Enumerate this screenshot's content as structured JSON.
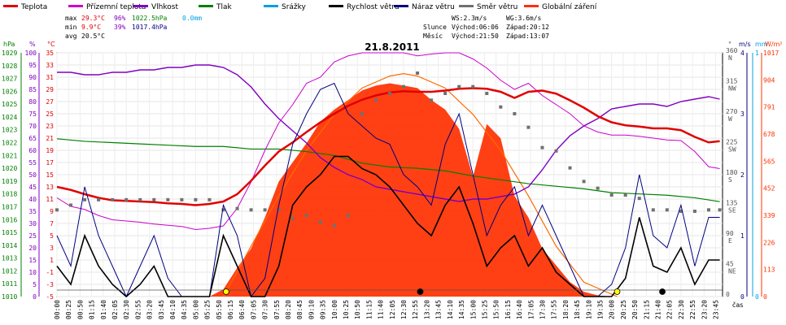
{
  "chart_data": {
    "type": "line",
    "title": "21.8.2011",
    "legend": [
      {
        "name": "Teplota",
        "color": "#e00000"
      },
      {
        "name": "Přízemní teplota",
        "color": "#cc00cc"
      },
      {
        "name": "Vlhkost",
        "color": "#8000c0"
      },
      {
        "name": "Tlak",
        "color": "#008000"
      },
      {
        "name": "Srážky",
        "color": "#00a0e0"
      },
      {
        "name": "Rychlost větru",
        "color": "#000000"
      },
      {
        "name": "Náraz větru",
        "color": "#000080"
      },
      {
        "name": "Směr větru",
        "color": "#707070"
      },
      {
        "name": "Globální záření",
        "color": "#ff3000"
      }
    ],
    "stats": {
      "max_label": "max",
      "max_temp": "29.3°C",
      "max_hum": "96%",
      "max_press": "1022.5hPa",
      "rain": "0.0mm",
      "min_label": "min",
      "min_temp": "9.9°C",
      "min_hum": "39%",
      "min_press": "1017.4hPa",
      "avg_label": "avg",
      "avg_temp": "20.5°C"
    },
    "info": {
      "ws": "WS:2.3m/s",
      "wg": "WG:3.6m/s",
      "sun_label": "Slunce",
      "sun_rise": "Východ:06:06",
      "sun_set": "Západ:20:12",
      "moon_label": "Měsíc",
      "moon_rise": "Východ:21:50",
      "moon_set": "Západ:13:07"
    },
    "axes": {
      "hpa_unit": "hPa",
      "pct_unit": "%",
      "temp_unit": "°C",
      "deg_unit": "°",
      "wind_unit": "m/s",
      "rain_unit": "mm",
      "rad_unit": "W/m²",
      "x_label": "čas",
      "hpa_ticks": [
        "1029",
        "1028",
        "1027",
        "1026",
        "1025",
        "1024",
        "1023",
        "1022",
        "1021",
        "1020",
        "1019",
        "1018",
        "1017",
        "1016",
        "1015",
        "1014",
        "1013",
        "1012",
        "1011",
        "1010"
      ],
      "pct_ticks": [
        "100",
        "95",
        "90",
        "85",
        "80",
        "75",
        "70",
        "65",
        "60",
        "55",
        "50",
        "45",
        "40",
        "35",
        "30",
        "25",
        "20",
        "15",
        "10",
        "5",
        "0"
      ],
      "temp_ticks": [
        "35",
        "33",
        "31",
        "29",
        "27",
        "25",
        "23",
        "21",
        "19",
        "17",
        "15",
        "13",
        "11",
        "9",
        "7",
        "5",
        "3",
        "1",
        "-1",
        "-3",
        "-5"
      ],
      "dir_ticks": [
        {
          "deg": "360",
          "dir": "N"
        },
        {
          "deg": "315",
          "dir": "NW"
        },
        {
          "deg": "270",
          "dir": "W"
        },
        {
          "deg": "225",
          "dir": "SW"
        },
        {
          "deg": "180",
          "dir": "S"
        },
        {
          "deg": "135",
          "dir": "SE"
        },
        {
          "deg": "90",
          "dir": "E"
        },
        {
          "deg": "45",
          "dir": "NE"
        },
        {
          "deg": "0",
          "dir": ""
        }
      ],
      "wind_ticks": [
        "4",
        "3",
        "2",
        "1",
        "0"
      ],
      "rain_ticks": [
        "1",
        "0"
      ],
      "rad_ticks": [
        "1017",
        "904",
        "791",
        "678",
        "565",
        "452",
        "339",
        "226",
        "113",
        "0"
      ],
      "hpa_range": [
        1010,
        1029
      ],
      "temp_range": [
        -5,
        35
      ],
      "pct_range": [
        0,
        100
      ],
      "dir_range": [
        0,
        360
      ],
      "wind_range": [
        0,
        4
      ],
      "rad_range": [
        0,
        1017
      ],
      "time_ticks": [
        "00:00",
        "00:25",
        "00:50",
        "01:15",
        "01:40",
        "02:05",
        "02:30",
        "02:55",
        "03:20",
        "03:45",
        "04:10",
        "04:35",
        "05:00",
        "05:25",
        "05:50",
        "06:15",
        "06:40",
        "07:05",
        "07:30",
        "07:55",
        "08:20",
        "08:45",
        "09:10",
        "09:35",
        "10:00",
        "10:25",
        "10:50",
        "11:15",
        "11:40",
        "12:05",
        "12:30",
        "12:55",
        "13:20",
        "13:45",
        "14:10",
        "14:35",
        "15:00",
        "15:25",
        "15:50",
        "16:15",
        "16:40",
        "17:05",
        "17:30",
        "17:55",
        "18:20",
        "18:45",
        "19:10",
        "19:35",
        "20:00",
        "20:25",
        "20:50",
        "21:15",
        "21:40",
        "22:05",
        "22:30",
        "22:55",
        "23:20",
        "23:45"
      ]
    },
    "series": {
      "temperature_hours": [
        0,
        0.5,
        1,
        1.5,
        2,
        2.5,
        3,
        3.5,
        4,
        4.5,
        5,
        5.5,
        6,
        6.5,
        7,
        7.5,
        8,
        8.5,
        9,
        9.5,
        10,
        10.5,
        11,
        11.5,
        12,
        12.5,
        13,
        13.5,
        14,
        14.5,
        15,
        15.5,
        16,
        16.5,
        17,
        17.5,
        18,
        18.5,
        19,
        19.5,
        20,
        20.5,
        21,
        21.5,
        22,
        22.5,
        23,
        23.5,
        23.9
      ],
      "temperature": [
        13,
        12.5,
        11.8,
        11.2,
        10.8,
        10.7,
        10.6,
        10.5,
        10.3,
        10.2,
        10.0,
        10.2,
        10.6,
        11.8,
        14.0,
        16.5,
        18.8,
        20.3,
        22.0,
        23.6,
        25.0,
        26.3,
        27.3,
        28.0,
        28.5,
        28.7,
        28.6,
        28.6,
        28.8,
        29.1,
        29.2,
        29.1,
        28.6,
        27.6,
        28.6,
        28.8,
        28.3,
        27.2,
        26.0,
        24.6,
        23.6,
        23.1,
        22.9,
        22.6,
        22.6,
        22.3,
        21.2,
        20.3,
        20.5
      ],
      "ground_temperature_hours": [
        0,
        0.5,
        1,
        1.5,
        2,
        2.5,
        3,
        3.5,
        4,
        4.5,
        5,
        5.5,
        6,
        6.5,
        7,
        7.5,
        8,
        8.5,
        9,
        9.5,
        10,
        10.5,
        11,
        11.5,
        12,
        12.5,
        13,
        13.5,
        14,
        14.5,
        15,
        15.5,
        16,
        16.5,
        17,
        17.5,
        18,
        18.5,
        19,
        19.5,
        20,
        20.5,
        21,
        21.5,
        22,
        22.5,
        23,
        23.5,
        23.9
      ],
      "ground_temperature": [
        11.2,
        9.8,
        9.3,
        8.3,
        7.6,
        7.4,
        7.2,
        6.9,
        6.7,
        6.5,
        6.0,
        6.2,
        6.6,
        9.5,
        13.8,
        19.0,
        23.5,
        26.5,
        30.0,
        31.0,
        33.5,
        34.5,
        35.0,
        35.0,
        35.0,
        35.0,
        34.5,
        34.8,
        35.0,
        35.0,
        34.0,
        32.5,
        30.5,
        29.0,
        30.0,
        28.0,
        26.5,
        25.0,
        23.0,
        22.0,
        21.5,
        21.5,
        21.3,
        21.0,
        20.7,
        20.6,
        18.8,
        16.3,
        16.0
      ],
      "humidity_hours": [
        0,
        0.5,
        1,
        1.5,
        2,
        2.5,
        3,
        3.5,
        4,
        4.5,
        5,
        5.5,
        6,
        6.5,
        7,
        7.5,
        8,
        8.5,
        9,
        9.5,
        10,
        10.5,
        11,
        11.5,
        12,
        12.5,
        13,
        13.5,
        14,
        14.5,
        15,
        15.5,
        16,
        16.5,
        17,
        17.5,
        18,
        18.5,
        19,
        19.5,
        20,
        20.5,
        21,
        21.5,
        22,
        22.5,
        23,
        23.5,
        23.9
      ],
      "humidity": [
        92,
        92,
        91,
        91,
        92,
        92,
        93,
        93,
        94,
        94,
        95,
        95,
        94,
        91,
        86,
        79,
        73,
        68,
        63,
        57,
        53,
        50,
        48,
        45,
        44,
        43,
        42,
        41,
        40,
        39,
        40,
        40,
        41,
        42,
        45,
        52,
        60,
        66,
        70,
        73,
        77,
        78,
        79,
        79,
        78,
        80,
        81,
        82,
        81
      ],
      "pressure_hours": [
        0,
        1,
        2,
        3,
        4,
        5,
        6,
        7,
        8,
        9,
        10,
        11,
        12,
        13,
        14,
        15,
        16,
        17,
        18,
        19,
        20,
        21,
        22,
        23,
        23.9
      ],
      "pressure": [
        1022.3,
        1022.1,
        1022.0,
        1021.9,
        1021.8,
        1021.7,
        1021.7,
        1021.5,
        1021.5,
        1021.3,
        1021.0,
        1020.4,
        1020.1,
        1020.0,
        1019.8,
        1019.4,
        1019.1,
        1018.8,
        1018.6,
        1018.4,
        1018.1,
        1018.0,
        1017.9,
        1017.7,
        1017.4
      ],
      "wind_speed_hours": [
        0,
        0.5,
        1,
        1.5,
        2,
        2.5,
        3,
        3.5,
        4,
        4.5,
        5,
        5.5,
        6,
        6.5,
        7,
        7.5,
        8,
        8.5,
        9,
        9.5,
        10,
        10.5,
        11,
        11.5,
        12,
        12.5,
        13,
        13.5,
        14,
        14.5,
        15,
        15.5,
        16,
        16.5,
        17,
        17.5,
        18,
        18.5,
        19,
        19.5,
        20,
        20.5,
        21,
        21.5,
        22,
        22.5,
        23,
        23.5,
        23.9
      ],
      "wind_speed": [
        0.5,
        0.2,
        1.0,
        0.5,
        0.2,
        0,
        0.2,
        0.5,
        0,
        0,
        0,
        0,
        1.0,
        0.5,
        0,
        0,
        0.5,
        1.5,
        1.8,
        2.0,
        2.3,
        2.3,
        2.1,
        2.0,
        1.8,
        1.5,
        1.2,
        1.0,
        1.5,
        1.8,
        1.2,
        0.5,
        0.8,
        1.0,
        0.5,
        0.8,
        0.4,
        0.2,
        0,
        0,
        0,
        0.3,
        1.3,
        0.5,
        0.4,
        0.8,
        0.2,
        0.6,
        0.6
      ],
      "wind_gust_hours": [
        0,
        0.5,
        1,
        1.5,
        2,
        2.5,
        3,
        3.5,
        4,
        4.5,
        5,
        5.5,
        6,
        6.5,
        7,
        7.5,
        8,
        8.5,
        9,
        9.5,
        10,
        10.5,
        11,
        11.5,
        12,
        12.5,
        13,
        13.5,
        14,
        14.5,
        15,
        15.5,
        16,
        16.5,
        17,
        17.5,
        18,
        18.5,
        19,
        19.5,
        20,
        20.5,
        21,
        21.5,
        22,
        22.5,
        23,
        23.5,
        23.9
      ],
      "wind_gust": [
        1.0,
        0.5,
        1.8,
        1.0,
        0.5,
        0,
        0.5,
        1.0,
        0.3,
        0,
        0,
        0,
        1.5,
        1.0,
        0,
        0.3,
        1.5,
        2.5,
        3.0,
        3.4,
        3.5,
        3.0,
        2.8,
        2.6,
        2.5,
        2.0,
        1.8,
        1.5,
        2.5,
        3.0,
        2.0,
        1.0,
        1.5,
        1.8,
        1.0,
        1.5,
        1.0,
        0.5,
        0,
        0,
        0.2,
        0.8,
        2.0,
        1.0,
        0.8,
        1.5,
        0.5,
        1.3,
        1.3
      ],
      "wind_direction_hours": [
        0,
        0.5,
        1,
        1.5,
        2,
        2.5,
        3,
        3.5,
        4,
        4.5,
        5,
        5.5,
        6,
        6.5,
        7,
        7.5,
        8,
        8.5,
        9,
        9.5,
        10,
        10.5,
        11,
        11.5,
        12,
        12.5,
        13,
        13.5,
        14,
        14.5,
        15,
        15.5,
        16,
        16.5,
        17,
        17.5,
        18,
        18.5,
        19,
        19.5,
        20,
        20.5,
        21,
        21.5,
        22,
        22.5,
        23,
        23.5,
        23.9
      ],
      "wind_direction": [
        128,
        135,
        143,
        143,
        143,
        143,
        143,
        143,
        143,
        143,
        143,
        143,
        128,
        130,
        128,
        128,
        128,
        115,
        120,
        110,
        105,
        120,
        270,
        290,
        300,
        310,
        330,
        290,
        300,
        310,
        310,
        300,
        280,
        270,
        250,
        220,
        215,
        190,
        170,
        160,
        150,
        150,
        145,
        128,
        128,
        126,
        126,
        128,
        128
      ],
      "radiation_hours": [
        0,
        5.5,
        6,
        6.5,
        7,
        7.5,
        8,
        8.5,
        9,
        9.5,
        10,
        10.5,
        11,
        11.5,
        12,
        12.5,
        13,
        13.5,
        14,
        14.5,
        15,
        15.5,
        16,
        16.5,
        17,
        17.5,
        18,
        18.5,
        19,
        19.5,
        20,
        24
      ],
      "radiation": [
        0,
        0,
        30,
        120,
        200,
        330,
        480,
        560,
        640,
        730,
        780,
        820,
        860,
        880,
        890,
        880,
        870,
        820,
        780,
        700,
        500,
        720,
        660,
        420,
        330,
        200,
        130,
        60,
        20,
        5,
        0,
        0
      ],
      "clear_sky_radiation_hours": [
        6.0,
        7,
        8,
        9,
        10,
        11,
        12,
        12.5,
        13,
        14,
        15,
        16,
        17,
        18,
        19,
        20.2
      ],
      "clear_sky_radiation": [
        0,
        210,
        420,
        610,
        760,
        870,
        920,
        930,
        920,
        870,
        760,
        610,
        420,
        210,
        60,
        0
      ]
    }
  }
}
